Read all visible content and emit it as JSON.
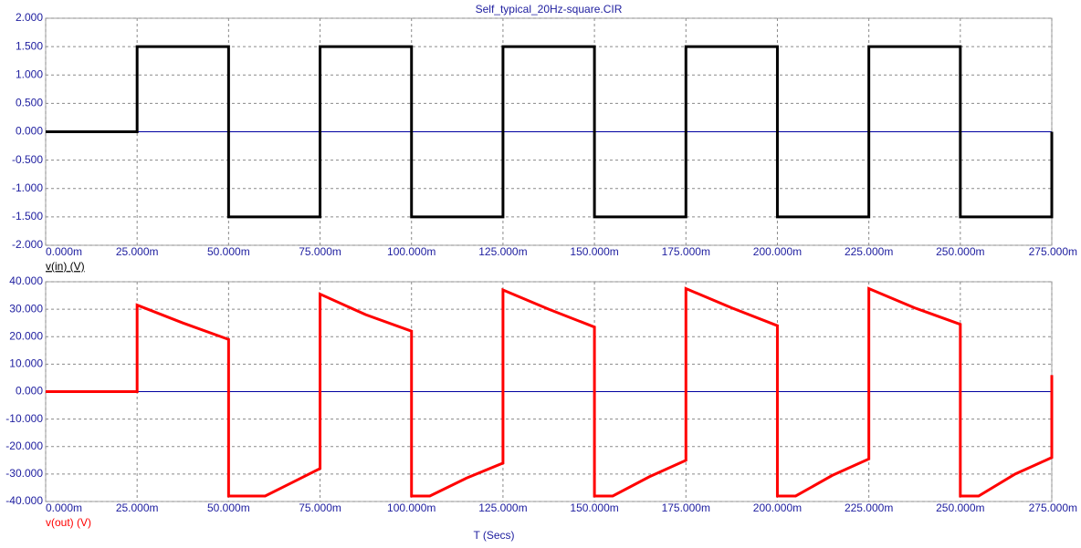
{
  "chart_data": [
    {
      "type": "line",
      "title": "Self_typical_20Hz-square.CIR",
      "x": [
        0,
        0.025,
        0.025,
        0.05,
        0.05,
        0.075,
        0.075,
        0.1,
        0.1,
        0.125,
        0.125,
        0.15,
        0.15,
        0.175,
        0.175,
        0.2,
        0.2,
        0.225,
        0.225,
        0.25,
        0.25,
        0.275,
        0.275
      ],
      "series": [
        {
          "name": "v(in) (V)",
          "color": "#000000",
          "values": [
            0,
            0,
            1.5,
            1.5,
            -1.5,
            -1.5,
            1.5,
            1.5,
            -1.5,
            -1.5,
            1.5,
            1.5,
            -1.5,
            -1.5,
            1.5,
            1.5,
            -1.5,
            -1.5,
            1.5,
            1.5,
            -1.5,
            -1.5,
            0
          ]
        }
      ],
      "xlim": [
        0,
        0.275
      ],
      "xticks": [
        {
          "value": 0,
          "label": "0.000m"
        },
        {
          "value": 0.025,
          "label": "25.000m"
        },
        {
          "value": 0.05,
          "label": "50.000m"
        },
        {
          "value": 0.075,
          "label": "75.000m"
        },
        {
          "value": 0.1,
          "label": "100.000m"
        },
        {
          "value": 0.125,
          "label": "125.000m"
        },
        {
          "value": 0.15,
          "label": "150.000m"
        },
        {
          "value": 0.175,
          "label": "175.000m"
        },
        {
          "value": 0.2,
          "label": "200.000m"
        },
        {
          "value": 0.225,
          "label": "225.000m"
        },
        {
          "value": 0.25,
          "label": "250.000m"
        },
        {
          "value": 0.275,
          "label": "275.000m"
        }
      ],
      "ylim": [
        -2,
        2
      ],
      "yticks": [
        {
          "value": 2,
          "label": "2.000"
        },
        {
          "value": 1.5,
          "label": "1.500"
        },
        {
          "value": 1,
          "label": "1.000"
        },
        {
          "value": 0.5,
          "label": "0.500"
        },
        {
          "value": 0,
          "label": "0.000"
        },
        {
          "value": -0.5,
          "label": "-0.500"
        },
        {
          "value": -1,
          "label": "-1.000"
        },
        {
          "value": -1.5,
          "label": "-1.500"
        },
        {
          "value": -2,
          "label": "-2.000"
        }
      ],
      "grid": true
    },
    {
      "type": "line",
      "x_label": "T (Secs)",
      "x": [
        0,
        0.025,
        0.025,
        0.0375,
        0.05,
        0.05,
        0.06,
        0.0675,
        0.075,
        0.075,
        0.0875,
        0.1,
        0.1,
        0.105,
        0.115,
        0.125,
        0.125,
        0.1375,
        0.15,
        0.15,
        0.155,
        0.165,
        0.175,
        0.175,
        0.1875,
        0.2,
        0.2,
        0.205,
        0.215,
        0.225,
        0.225,
        0.2375,
        0.25,
        0.25,
        0.255,
        0.265,
        0.275,
        0.275
      ],
      "series": [
        {
          "name": "v(out) (V)",
          "color": "#ff0000",
          "values": [
            0,
            0,
            31.5,
            25,
            19,
            -38,
            -38,
            -33,
            -28,
            35.5,
            28,
            22,
            -38,
            -38,
            -31.5,
            -26,
            37,
            30,
            23.5,
            -38,
            -38,
            -31,
            -25,
            37.5,
            30.5,
            24,
            -38,
            -38,
            -30.5,
            -24.5,
            37.5,
            30.5,
            24.5,
            -38,
            -38,
            -30,
            -24,
            6
          ]
        }
      ],
      "xlim": [
        0,
        0.275
      ],
      "xticks": [
        {
          "value": 0,
          "label": "0.000m"
        },
        {
          "value": 0.025,
          "label": "25.000m"
        },
        {
          "value": 0.05,
          "label": "50.000m"
        },
        {
          "value": 0.075,
          "label": "75.000m"
        },
        {
          "value": 0.1,
          "label": "100.000m"
        },
        {
          "value": 0.125,
          "label": "125.000m"
        },
        {
          "value": 0.15,
          "label": "150.000m"
        },
        {
          "value": 0.175,
          "label": "175.000m"
        },
        {
          "value": 0.2,
          "label": "200.000m"
        },
        {
          "value": 0.225,
          "label": "225.000m"
        },
        {
          "value": 0.25,
          "label": "250.000m"
        },
        {
          "value": 0.275,
          "label": "275.000m"
        }
      ],
      "ylim": [
        -40,
        40
      ],
      "yticks": [
        {
          "value": 40,
          "label": "40.000"
        },
        {
          "value": 30,
          "label": "30.000"
        },
        {
          "value": 20,
          "label": "20.000"
        },
        {
          "value": 10,
          "label": "10.000"
        },
        {
          "value": 0,
          "label": "0.000"
        },
        {
          "value": -10,
          "label": "-10.000"
        },
        {
          "value": -20,
          "label": "-20.000"
        },
        {
          "value": -30,
          "label": "-30.000"
        },
        {
          "value": -40,
          "label": "-40.000"
        }
      ],
      "grid": true
    }
  ]
}
